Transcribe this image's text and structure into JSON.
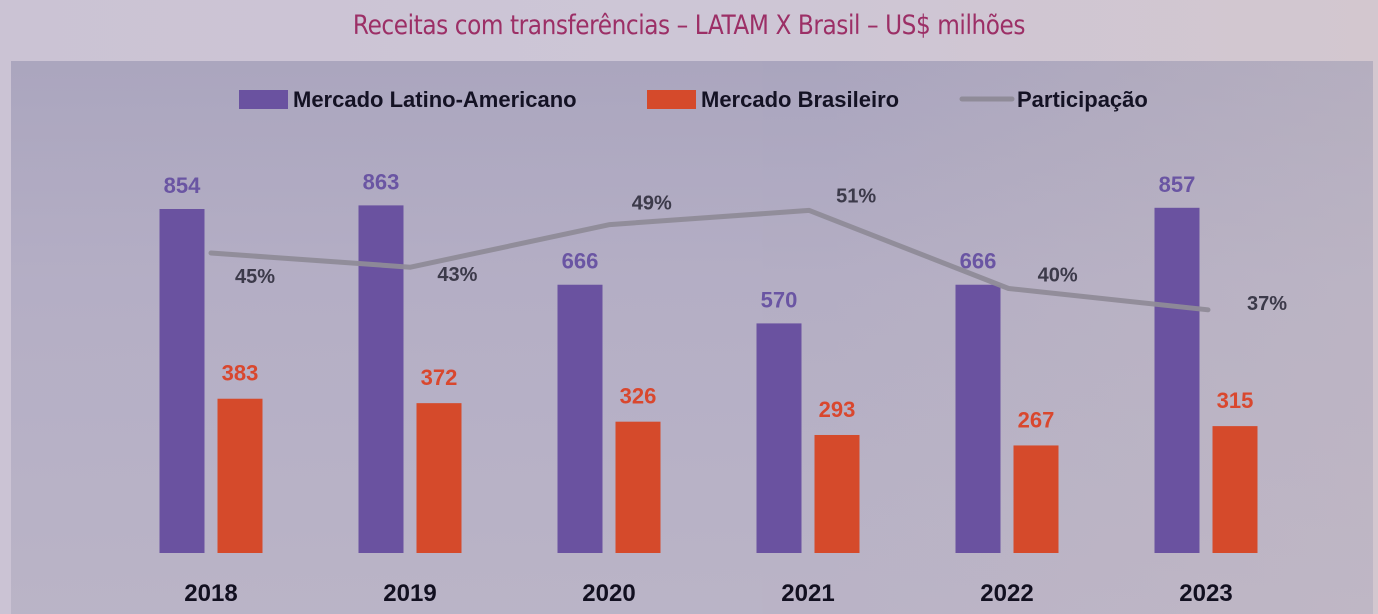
{
  "title": "Receitas com transferências – LATAM X Brasil – US$ milhões",
  "colors": {
    "latam": "#6a52a0",
    "brasil": "#d54a2b",
    "participacao": "#8f8b98",
    "title": "#9c2f66"
  },
  "chart_data": {
    "type": "bar",
    "title": "Receitas com transferências – LATAM X Brasil – US$ milhões",
    "xlabel": "",
    "ylabel": "",
    "categories": [
      "2018",
      "2019",
      "2020",
      "2021",
      "2022",
      "2023"
    ],
    "series": [
      {
        "name": "Mercado Latino-Americano",
        "type": "bar",
        "values": [
          854,
          863,
          666,
          570,
          666,
          857
        ],
        "labels": [
          "854",
          "863",
          "666",
          "570",
          "666",
          "857"
        ]
      },
      {
        "name": "Mercado Brasileiro",
        "type": "bar",
        "values": [
          383,
          372,
          326,
          293,
          267,
          315
        ],
        "labels": [
          "383",
          "372",
          "326",
          "293",
          "267",
          "315"
        ]
      },
      {
        "name": "Participação",
        "type": "line",
        "values": [
          45,
          43,
          49,
          51,
          40,
          37
        ],
        "labels": [
          "45%",
          "43%",
          "49%",
          "51%",
          "40%",
          "37%"
        ],
        "unit": "%"
      }
    ],
    "ylim": [
      0,
      900
    ],
    "grid": false,
    "legend": {
      "position": "top",
      "entries": [
        "Mercado Latino-Americano",
        "Mercado Brasileiro",
        "Participação"
      ]
    }
  }
}
